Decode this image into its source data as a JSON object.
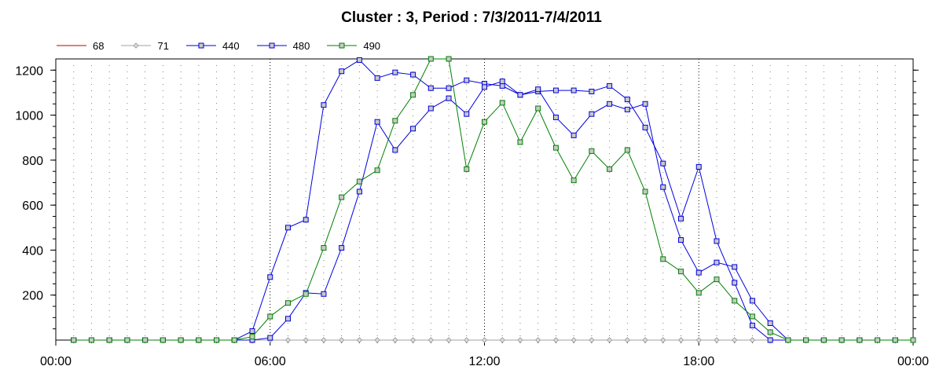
{
  "chart_data": {
    "type": "line",
    "title": "Cluster : 3, Period : 7/3/2011-7/4/2011",
    "xlabel": "",
    "ylabel": "",
    "xlim_hours": [
      0,
      24
    ],
    "ylim": [
      0,
      1250
    ],
    "x_ticks": [
      {
        "h": 0,
        "label": "00:00"
      },
      {
        "h": 6,
        "label": "06:00"
      },
      {
        "h": 12,
        "label": "12:00"
      },
      {
        "h": 18,
        "label": "18:00"
      },
      {
        "h": 24,
        "label": "00:00"
      }
    ],
    "y_ticks": [
      200,
      400,
      600,
      800,
      1000,
      1200
    ],
    "grid": "vertical dotted, every 0.5 h; major at 6 h",
    "legend_position": "top-left",
    "x_hours": [
      0.5,
      1,
      1.5,
      2,
      2.5,
      3,
      3.5,
      4,
      4.5,
      5,
      5.5,
      6,
      6.5,
      7,
      7.5,
      8,
      8.5,
      9,
      9.5,
      10,
      10.5,
      11,
      11.5,
      12,
      12.5,
      13,
      13.5,
      14,
      14.5,
      15,
      15.5,
      16,
      16.5,
      17,
      17.5,
      18,
      18.5,
      19,
      19.5,
      20,
      20.5,
      21,
      21.5,
      22,
      22.5,
      23,
      23.5,
      24
    ],
    "series": [
      {
        "name": "68",
        "color": "#c00000",
        "marker": "none",
        "values": [
          0,
          0,
          0,
          0,
          0,
          0,
          0,
          0,
          0,
          0,
          0,
          0,
          0,
          0,
          0,
          0,
          0,
          0,
          0,
          0,
          0,
          0,
          0,
          0,
          0,
          0,
          0,
          0,
          0,
          0,
          0,
          0,
          0,
          0,
          0,
          0,
          0,
          0,
          0,
          0,
          0,
          0,
          0,
          0,
          0,
          0,
          0,
          0
        ]
      },
      {
        "name": "71",
        "color": "#a0a0a0",
        "marker": "diamond",
        "values": [
          0,
          0,
          0,
          0,
          0,
          0,
          0,
          0,
          0,
          0,
          0,
          0,
          0,
          0,
          0,
          0,
          0,
          0,
          0,
          0,
          0,
          0,
          0,
          0,
          0,
          0,
          0,
          0,
          0,
          0,
          0,
          0,
          0,
          0,
          0,
          0,
          0,
          0,
          0,
          0,
          0,
          0,
          0,
          0,
          0,
          0,
          0,
          0
        ]
      },
      {
        "name": "440",
        "color": "#0000e0",
        "marker": "square",
        "values": [
          0,
          0,
          0,
          0,
          0,
          0,
          0,
          0,
          0,
          0,
          40,
          280,
          500,
          535,
          1045,
          1195,
          1245,
          1165,
          1190,
          1180,
          1120,
          1120,
          1155,
          1140,
          1130,
          1090,
          1105,
          1110,
          1110,
          1105,
          1130,
          1070,
          945,
          785,
          540,
          770,
          440,
          255,
          65,
          0,
          0,
          0,
          0,
          0,
          0,
          0,
          0,
          0
        ]
      },
      {
        "name": "480",
        "color": "#0000e0",
        "marker": "square",
        "values": [
          0,
          0,
          0,
          0,
          0,
          0,
          0,
          0,
          0,
          0,
          0,
          10,
          95,
          210,
          205,
          410,
          660,
          970,
          845,
          940,
          1030,
          1075,
          1005,
          1125,
          1150,
          1090,
          1115,
          990,
          910,
          1005,
          1050,
          1025,
          1050,
          680,
          445,
          300,
          345,
          325,
          175,
          75,
          0,
          0,
          0,
          0,
          0,
          0,
          0,
          0
        ]
      },
      {
        "name": "490",
        "color": "#008000",
        "marker": "square",
        "values": [
          0,
          0,
          0,
          0,
          0,
          0,
          0,
          0,
          0,
          0,
          15,
          105,
          165,
          205,
          410,
          635,
          705,
          755,
          975,
          1090,
          1250,
          1250,
          760,
          970,
          1055,
          880,
          1030,
          855,
          710,
          840,
          760,
          845,
          660,
          360,
          305,
          210,
          270,
          175,
          105,
          35,
          0,
          0,
          0,
          0,
          0,
          0,
          0,
          0
        ]
      }
    ]
  }
}
